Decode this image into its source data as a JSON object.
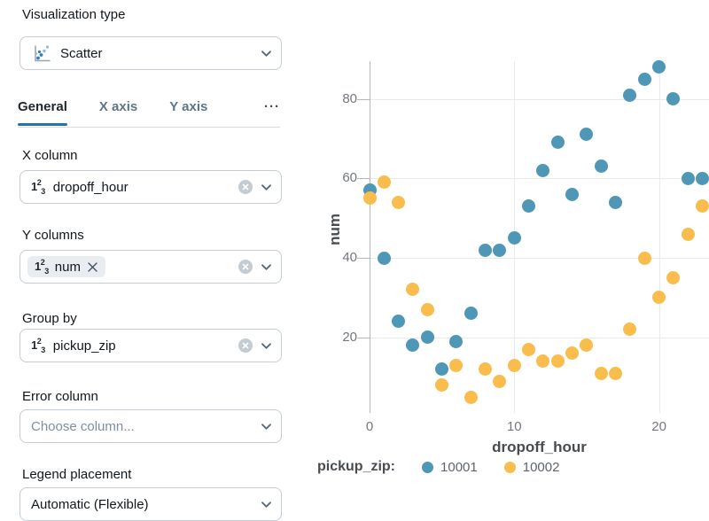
{
  "config_panel": {
    "viz_type": {
      "label": "Visualization type",
      "value": "Scatter"
    },
    "tabs": [
      {
        "label": "General",
        "active": true
      },
      {
        "label": "X axis",
        "active": false
      },
      {
        "label": "Y axis",
        "active": false
      },
      {
        "label": "···",
        "active": false
      }
    ],
    "fields": {
      "x_column": {
        "label": "X column",
        "value": "dropoff_hour"
      },
      "y_columns": {
        "label": "Y columns",
        "chips": [
          {
            "value": "num"
          }
        ]
      },
      "group_by": {
        "label": "Group by",
        "value": "pickup_zip"
      },
      "error_column": {
        "label": "Error column",
        "placeholder": "Choose column..."
      },
      "legend_placement": {
        "label": "Legend placement",
        "value": "Automatic (Flexible)"
      }
    }
  },
  "icons": {
    "viz_type_icon": "scatter-plot-icon",
    "column_type_icon": "number-123-icon",
    "number_icon": {
      "d1": "1",
      "d2": "2",
      "d3": "3"
    },
    "clear_icon": "circle-x-icon",
    "dropdown_icon": "chevron-down-icon",
    "chip_remove_icon": "x-icon"
  },
  "colors": {
    "accent_blue": "#2272b4",
    "series_10001": "#4f97b6",
    "series_10002": "#f9bd4d",
    "axis_line": "#b0b7bd",
    "gridline": "#e8eaed"
  },
  "chart_data": {
    "type": "scatter",
    "title": "",
    "xlabel": "dropoff_hour",
    "ylabel": "num",
    "legend_title": "pickup_zip:",
    "legend_position": "bottom",
    "grid": true,
    "x_ticks": [
      0,
      10,
      20
    ],
    "y_ticks": [
      20,
      40,
      60,
      80
    ],
    "xlim": [
      0,
      23.45
    ],
    "ylim": [
      1,
      89.5
    ],
    "series": [
      {
        "name": "10001",
        "color": "#4f97b6",
        "points": [
          [
            0,
            57
          ],
          [
            1,
            40
          ],
          [
            2,
            24
          ],
          [
            3,
            18
          ],
          [
            4,
            20
          ],
          [
            5,
            12
          ],
          [
            6,
            19
          ],
          [
            7,
            26
          ],
          [
            8,
            42
          ],
          [
            9,
            42
          ],
          [
            10,
            45
          ],
          [
            11,
            53
          ],
          [
            12,
            62
          ],
          [
            13,
            69
          ],
          [
            14,
            56
          ],
          [
            15,
            71
          ],
          [
            16,
            63
          ],
          [
            17,
            54
          ],
          [
            18,
            81
          ],
          [
            19,
            85
          ],
          [
            20,
            88
          ],
          [
            21,
            80
          ],
          [
            22,
            60
          ],
          [
            23,
            60
          ]
        ]
      },
      {
        "name": "10002",
        "color": "#f9bd4d",
        "points": [
          [
            0,
            55
          ],
          [
            1,
            59
          ],
          [
            2,
            54
          ],
          [
            3,
            32
          ],
          [
            4,
            27
          ],
          [
            5,
            8
          ],
          [
            6,
            13
          ],
          [
            7,
            5
          ],
          [
            8,
            12
          ],
          [
            9,
            9
          ],
          [
            10,
            13
          ],
          [
            11,
            17
          ],
          [
            12,
            14
          ],
          [
            13,
            14
          ],
          [
            14,
            16
          ],
          [
            15,
            18
          ],
          [
            16,
            11
          ],
          [
            17,
            11
          ],
          [
            18,
            22
          ],
          [
            19,
            40
          ],
          [
            20,
            30
          ],
          [
            21,
            35
          ],
          [
            22,
            46
          ],
          [
            23,
            53
          ]
        ]
      }
    ]
  }
}
